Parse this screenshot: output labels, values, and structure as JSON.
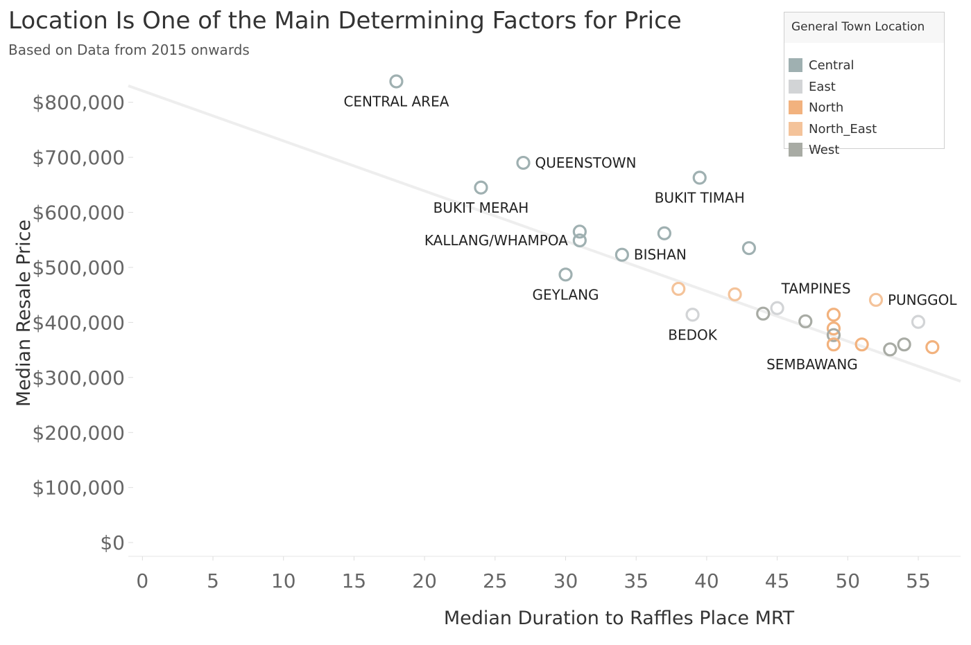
{
  "chart_data": {
    "type": "scatter",
    "title": "Location Is One of the Main Determining Factors for Price",
    "subtitle": "Based on Data from 2015 onwards",
    "xlabel": "Median Duration to Raffles Place MRT",
    "ylabel": "Median Resale Price",
    "xlim": [
      -1,
      58
    ],
    "ylim": [
      -25000,
      860000
    ],
    "x_ticks": [
      "0",
      "5",
      "10",
      "15",
      "20",
      "25",
      "30",
      "35",
      "40",
      "45",
      "50",
      "55"
    ],
    "y_ticks": [
      "$0",
      "$100,000",
      "$200,000",
      "$300,000",
      "$400,000",
      "$500,000",
      "$600,000",
      "$700,000",
      "$800,000"
    ],
    "grid": false,
    "legend_position": "top-right",
    "trend_line": {
      "x": [
        -1,
        58
      ],
      "y": [
        830000,
        293000
      ],
      "color": "#eeeeee"
    },
    "legend": {
      "title": "General Town Location",
      "items": [
        {
          "name": "Central",
          "color": "#9fb0b1"
        },
        {
          "name": "East",
          "color": "#d2d4d6"
        },
        {
          "name": "North",
          "color": "#f2b27e"
        },
        {
          "name": "North_East",
          "color": "#f4c39a"
        },
        {
          "name": "West",
          "color": "#a8aba4"
        }
      ]
    },
    "points": [
      {
        "x": 18,
        "y": 838000,
        "group": "Central",
        "label": "CENTRAL AREA",
        "label_pos": "below"
      },
      {
        "x": 27,
        "y": 690000,
        "group": "Central",
        "label": "QUEENSTOWN",
        "label_pos": "right"
      },
      {
        "x": 24,
        "y": 645000,
        "group": "Central",
        "label": "BUKIT MERAH",
        "label_pos": "below"
      },
      {
        "x": 39.5,
        "y": 663000,
        "group": "Central",
        "label": "BUKIT TIMAH",
        "label_pos": "below"
      },
      {
        "x": 31,
        "y": 565000,
        "group": "Central",
        "label": "",
        "label_pos": ""
      },
      {
        "x": 31,
        "y": 549000,
        "group": "Central",
        "label": "KALLANG/WHAMPOA",
        "label_pos": "left"
      },
      {
        "x": 37,
        "y": 562000,
        "group": "Central",
        "label": "",
        "label_pos": ""
      },
      {
        "x": 34,
        "y": 523000,
        "group": "Central",
        "label": "BISHAN",
        "label_pos": "right"
      },
      {
        "x": 43,
        "y": 535000,
        "group": "Central",
        "label": "",
        "label_pos": ""
      },
      {
        "x": 30,
        "y": 487000,
        "group": "Central",
        "label": "GEYLANG",
        "label_pos": "below"
      },
      {
        "x": 38,
        "y": 461000,
        "group": "North_East",
        "label": "",
        "label_pos": ""
      },
      {
        "x": 42,
        "y": 451000,
        "group": "North_East",
        "label": "",
        "label_pos": ""
      },
      {
        "x": 39,
        "y": 414000,
        "group": "East",
        "label": "BEDOK",
        "label_pos": "below"
      },
      {
        "x": 45,
        "y": 426000,
        "group": "East",
        "label": "TAMPINES",
        "label_pos": "above-right"
      },
      {
        "x": 44,
        "y": 416000,
        "group": "West",
        "label": "",
        "label_pos": ""
      },
      {
        "x": 47,
        "y": 402000,
        "group": "West",
        "label": "",
        "label_pos": ""
      },
      {
        "x": 49,
        "y": 414000,
        "group": "North",
        "label": "",
        "label_pos": ""
      },
      {
        "x": 49,
        "y": 389000,
        "group": "North",
        "label": "",
        "label_pos": ""
      },
      {
        "x": 49,
        "y": 377000,
        "group": "West",
        "label": "",
        "label_pos": ""
      },
      {
        "x": 49,
        "y": 360000,
        "group": "North",
        "label": "SEMBAWANG",
        "label_pos": "below-left"
      },
      {
        "x": 51,
        "y": 360000,
        "group": "North",
        "label": "",
        "label_pos": ""
      },
      {
        "x": 52,
        "y": 441000,
        "group": "North_East",
        "label": "PUNGGOL",
        "label_pos": "right"
      },
      {
        "x": 55,
        "y": 401000,
        "group": "East",
        "label": "",
        "label_pos": ""
      },
      {
        "x": 53,
        "y": 351000,
        "group": "West",
        "label": "",
        "label_pos": ""
      },
      {
        "x": 54,
        "y": 360000,
        "group": "West",
        "label": "",
        "label_pos": ""
      },
      {
        "x": 56,
        "y": 355000,
        "group": "North",
        "label": "",
        "label_pos": ""
      }
    ]
  }
}
